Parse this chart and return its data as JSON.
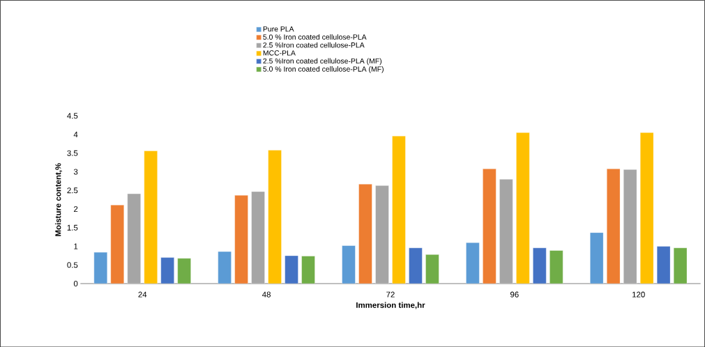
{
  "chart_data": {
    "type": "bar",
    "xlabel": "Immersion time,hr",
    "ylabel": "Moisture content,%",
    "categories": [
      "24",
      "48",
      "72",
      "96",
      "120"
    ],
    "series": [
      {
        "name": "Pure PLA",
        "color": "#5b9bd5",
        "values": [
          0.84,
          0.86,
          1.02,
          1.1,
          1.37
        ]
      },
      {
        "name": "5.0 % Iron coated cellulose-PLA",
        "color": "#ed7d31",
        "values": [
          2.11,
          2.37,
          2.67,
          3.08,
          3.08
        ]
      },
      {
        "name": "2.5 %Iron coated cellulose-PLA",
        "color": "#a5a5a5",
        "values": [
          2.41,
          2.47,
          2.63,
          2.8,
          3.06
        ]
      },
      {
        "name": "MCC-PLA",
        "color": "#ffc000",
        "values": [
          3.56,
          3.58,
          3.96,
          4.05,
          4.05
        ]
      },
      {
        "name": "2.5 %Iron coated cellulose-PLA (MF)",
        "color": "#4472c4",
        "values": [
          0.7,
          0.75,
          0.96,
          0.96,
          1.0
        ]
      },
      {
        "name": "5.0 % Iron coated cellulose-PLA (MF)",
        "color": "#70ad47",
        "values": [
          0.68,
          0.74,
          0.78,
          0.89,
          0.96
        ]
      }
    ],
    "ylim": [
      0,
      4.5
    ],
    "yticks": [
      0,
      0.5,
      1,
      1.5,
      2,
      2.5,
      3,
      3.5,
      4,
      4.5
    ],
    "legend": "top",
    "grid": false
  }
}
